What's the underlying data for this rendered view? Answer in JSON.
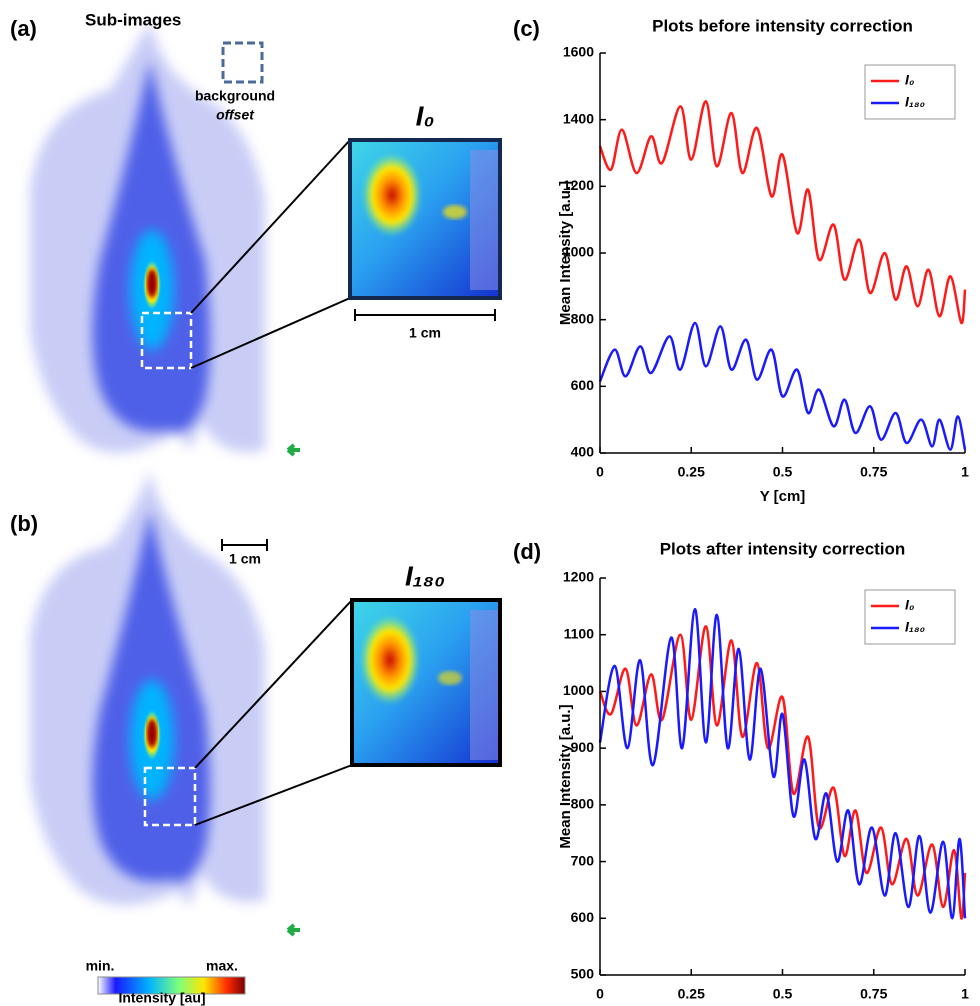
{
  "figure": {
    "panel_a_label": "(a)",
    "panel_a_title": "Sub-images",
    "background_label": "background",
    "offset_label": "offset",
    "inset_a_label": "I₀",
    "inset_a_scale": "1 cm",
    "panel_b_label": "(b)",
    "panel_b_scale": "1 cm",
    "inset_b_label": "I₁₈₀",
    "colorbar_min": "min.",
    "colorbar_max": "max.",
    "colorbar_label": "Intensity [au]"
  },
  "chart_data": [
    {
      "type": "line",
      "panel_label": "(c)",
      "title": "Plots before intensity correction",
      "xlabel": "Y [cm]",
      "ylabel": "Mean Intensity [a.u.]",
      "xlim": [
        0,
        1
      ],
      "ylim": [
        400,
        1600
      ],
      "xticks": [
        0,
        0.25,
        0.5,
        0.75,
        1
      ],
      "yticks": [
        400,
        600,
        800,
        1000,
        1200,
        1400,
        1600
      ],
      "legend": "upper right",
      "series": [
        {
          "name": "I₀",
          "color": "#ff1a1a",
          "x": [
            0,
            0.03,
            0.06,
            0.1,
            0.14,
            0.17,
            0.22,
            0.25,
            0.29,
            0.32,
            0.36,
            0.39,
            0.43,
            0.47,
            0.5,
            0.54,
            0.57,
            0.6,
            0.64,
            0.67,
            0.71,
            0.74,
            0.78,
            0.81,
            0.84,
            0.87,
            0.9,
            0.93,
            0.96,
            0.99,
            1
          ],
          "values": [
            1320,
            1250,
            1370,
            1240,
            1350,
            1270,
            1440,
            1280,
            1455,
            1260,
            1420,
            1240,
            1375,
            1170,
            1295,
            1060,
            1190,
            980,
            1085,
            920,
            1040,
            880,
            1000,
            860,
            960,
            840,
            950,
            810,
            930,
            790,
            890
          ]
        },
        {
          "name": "I₁₈₀",
          "color": "#1a1aff",
          "x": [
            0,
            0.04,
            0.07,
            0.11,
            0.14,
            0.19,
            0.22,
            0.26,
            0.29,
            0.33,
            0.36,
            0.4,
            0.43,
            0.47,
            0.5,
            0.54,
            0.57,
            0.6,
            0.64,
            0.67,
            0.7,
            0.74,
            0.77,
            0.81,
            0.84,
            0.88,
            0.91,
            0.93,
            0.96,
            0.98,
            1
          ],
          "values": [
            615,
            710,
            630,
            720,
            640,
            750,
            650,
            790,
            660,
            780,
            650,
            740,
            620,
            710,
            570,
            650,
            520,
            590,
            480,
            560,
            460,
            540,
            440,
            520,
            430,
            500,
            420,
            500,
            410,
            510,
            410
          ]
        }
      ]
    },
    {
      "type": "line",
      "panel_label": "(d)",
      "title": "Plots after intensity correction",
      "xlabel": "Y [cm]",
      "ylabel": "Mean Intensity [a.u.]",
      "xlim": [
        0,
        1
      ],
      "ylim": [
        500,
        1200
      ],
      "xticks": [
        0,
        0.25,
        0.5,
        0.75,
        1
      ],
      "yticks": [
        500,
        600,
        700,
        800,
        900,
        1000,
        1100,
        1200
      ],
      "legend": "upper right",
      "series": [
        {
          "name": "I₀",
          "color": "#ff1a1a",
          "x": [
            0,
            0.03,
            0.07,
            0.1,
            0.14,
            0.17,
            0.22,
            0.25,
            0.29,
            0.32,
            0.36,
            0.39,
            0.43,
            0.46,
            0.5,
            0.53,
            0.57,
            0.6,
            0.64,
            0.67,
            0.7,
            0.73,
            0.77,
            0.8,
            0.84,
            0.87,
            0.91,
            0.94,
            0.97,
            0.99,
            1
          ],
          "values": [
            1000,
            960,
            1040,
            940,
            1030,
            950,
            1100,
            950,
            1115,
            940,
            1090,
            920,
            1050,
            900,
            990,
            820,
            920,
            760,
            830,
            710,
            790,
            680,
            760,
            660,
            740,
            640,
            730,
            620,
            720,
            600,
            680
          ]
        },
        {
          "name": "I₁₈₀",
          "color": "#1a1aff",
          "x": [
            0,
            0.04,
            0.075,
            0.11,
            0.145,
            0.195,
            0.225,
            0.26,
            0.29,
            0.32,
            0.35,
            0.38,
            0.41,
            0.44,
            0.475,
            0.5,
            0.53,
            0.56,
            0.59,
            0.62,
            0.65,
            0.68,
            0.71,
            0.745,
            0.78,
            0.81,
            0.845,
            0.875,
            0.905,
            0.94,
            0.965,
            0.985,
            1
          ],
          "values": [
            910,
            1045,
            900,
            1055,
            870,
            1095,
            900,
            1145,
            910,
            1135,
            900,
            1075,
            880,
            1040,
            850,
            960,
            780,
            880,
            740,
            820,
            700,
            790,
            660,
            760,
            640,
            750,
            620,
            745,
            610,
            735,
            600,
            740,
            600
          ]
        }
      ]
    }
  ]
}
